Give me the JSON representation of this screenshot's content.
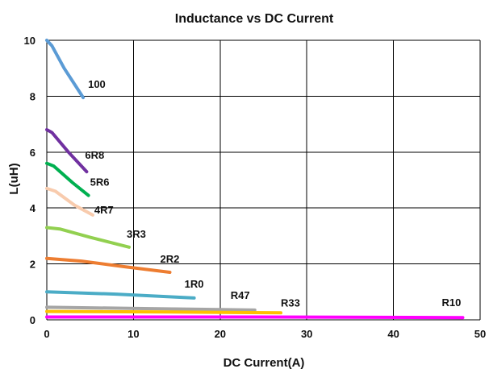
{
  "chart_data": {
    "type": "line",
    "title": "Inductance vs DC Current",
    "xlabel": "DC Current(A)",
    "ylabel": "L(uH)",
    "xlim": [
      0,
      50
    ],
    "ylim": [
      0,
      10
    ],
    "x_ticks": [
      "0",
      "10",
      "20",
      "30",
      "40",
      "50"
    ],
    "y_ticks": [
      "0",
      "2",
      "4",
      "6",
      "8",
      "10"
    ],
    "grid": true,
    "legend": "labels-at-line-ends",
    "series": [
      {
        "name": "100",
        "color": "#5B9BD5",
        "x": [
          0,
          0.6,
          2.0,
          4.2
        ],
        "y": [
          10.0,
          9.8,
          9.0,
          7.95
        ]
      },
      {
        "name": "6R8",
        "color": "#7030A0",
        "x": [
          0,
          0.6,
          2.5,
          4.6
        ],
        "y": [
          6.8,
          6.7,
          6.0,
          5.3
        ]
      },
      {
        "name": "5R6",
        "color": "#00B050",
        "x": [
          0,
          0.8,
          3.0,
          4.8
        ],
        "y": [
          5.6,
          5.5,
          4.9,
          4.45
        ]
      },
      {
        "name": "4R7",
        "color": "#F8CBAD",
        "x": [
          0,
          1.0,
          3.2,
          5.3
        ],
        "y": [
          4.7,
          4.6,
          4.1,
          3.75
        ]
      },
      {
        "name": "3R3",
        "color": "#92D050",
        "x": [
          0,
          1.5,
          5.0,
          9.5
        ],
        "y": [
          3.3,
          3.25,
          2.95,
          2.6
        ]
      },
      {
        "name": "2R2",
        "color": "#ED7D31",
        "x": [
          0,
          4.0,
          9.0,
          14.2
        ],
        "y": [
          2.2,
          2.1,
          1.9,
          1.7
        ]
      },
      {
        "name": "1R0",
        "color": "#4BACC6",
        "x": [
          0,
          8.0,
          17.0
        ],
        "y": [
          1.0,
          0.92,
          0.78
        ]
      },
      {
        "name": "R47",
        "color": "#A5A5A5",
        "x": [
          0,
          12.0,
          24.0
        ],
        "y": [
          0.45,
          0.4,
          0.35
        ]
      },
      {
        "name": "R33",
        "color": "#FFC000",
        "x": [
          0,
          14.0,
          27.0
        ],
        "y": [
          0.3,
          0.28,
          0.25
        ]
      },
      {
        "name": "R10",
        "color": "#FF00FF",
        "x": [
          0,
          24.0,
          48.0
        ],
        "y": [
          0.1,
          0.1,
          0.08
        ]
      }
    ]
  }
}
